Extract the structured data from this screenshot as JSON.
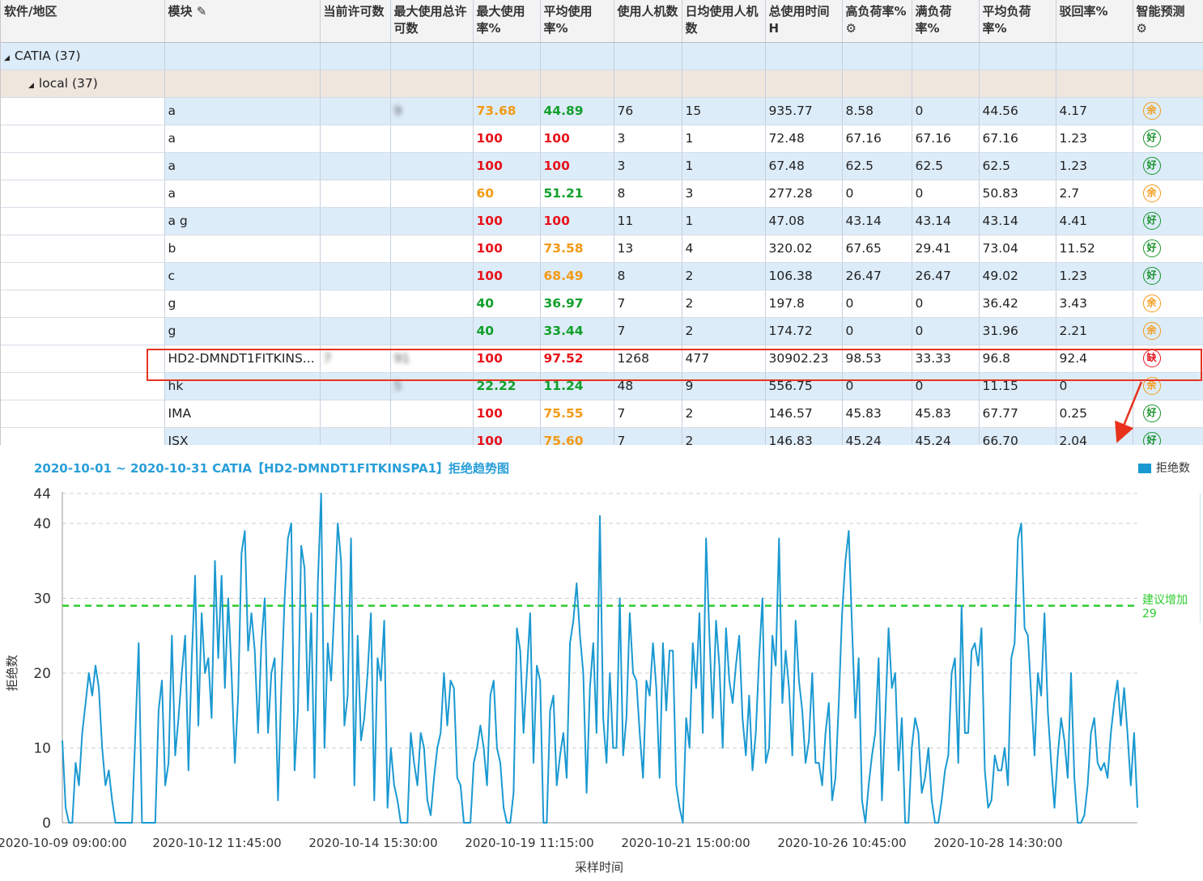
{
  "grid": {
    "columns": [
      "软件/地区",
      "模块",
      "当前许可数",
      "最大使用总许可数",
      "最大使用率%",
      "平均使用率%",
      "使用人机数",
      "日均使用人机数",
      "总使用时间H",
      "高负荷率%",
      "满负荷率%",
      "平均负荷率%",
      "驳回率%",
      "智能预测"
    ],
    "group1": "CATIA (37)",
    "group2": "local (37)",
    "rows": [
      {
        "module": "a",
        "cur": "",
        "maxTot": "9",
        "maxRate": "73.68",
        "maxCls": "orange",
        "avgRate": "44.89",
        "avgCls": "green",
        "users": "76",
        "daily": "15",
        "total": "935.77",
        "high": "8.58",
        "full": "0",
        "avgLoad": "44.56",
        "reject": "4.17",
        "pred": "余",
        "predCls": "o"
      },
      {
        "module": "a",
        "cur": "",
        "maxTot": "",
        "maxRate": "100",
        "maxCls": "red",
        "avgRate": "100",
        "avgCls": "red",
        "users": "3",
        "daily": "1",
        "total": "72.48",
        "high": "67.16",
        "full": "67.16",
        "avgLoad": "67.16",
        "reject": "1.23",
        "pred": "好",
        "predCls": "g"
      },
      {
        "module": "a",
        "cur": "",
        "maxTot": "",
        "maxRate": "100",
        "maxCls": "red",
        "avgRate": "100",
        "avgCls": "red",
        "users": "3",
        "daily": "1",
        "total": "67.48",
        "high": "62.5",
        "full": "62.5",
        "avgLoad": "62.5",
        "reject": "1.23",
        "pred": "好",
        "predCls": "g"
      },
      {
        "module": "a",
        "cur": "",
        "maxTot": "",
        "maxRate": "60",
        "maxCls": "orange",
        "avgRate": "51.21",
        "avgCls": "green",
        "users": "8",
        "daily": "3",
        "total": "277.28",
        "high": "0",
        "full": "0",
        "avgLoad": "50.83",
        "reject": "2.7",
        "pred": "余",
        "predCls": "o"
      },
      {
        "module": "a   g",
        "cur": "",
        "maxTot": "",
        "maxRate": "100",
        "maxCls": "red",
        "avgRate": "100",
        "avgCls": "red",
        "users": "11",
        "daily": "1",
        "total": "47.08",
        "high": "43.14",
        "full": "43.14",
        "avgLoad": "43.14",
        "reject": "4.41",
        "pred": "好",
        "predCls": "g"
      },
      {
        "module": "b",
        "cur": "",
        "maxTot": "",
        "maxRate": "100",
        "maxCls": "red",
        "avgRate": "73.58",
        "avgCls": "orange",
        "users": "13",
        "daily": "4",
        "total": "320.02",
        "high": "67.65",
        "full": "29.41",
        "avgLoad": "73.04",
        "reject": "11.52",
        "pred": "好",
        "predCls": "g"
      },
      {
        "module": "c",
        "cur": "",
        "maxTot": "",
        "maxRate": "100",
        "maxCls": "red",
        "avgRate": "68.49",
        "avgCls": "orange",
        "users": "8",
        "daily": "2",
        "total": "106.38",
        "high": "26.47",
        "full": "26.47",
        "avgLoad": "49.02",
        "reject": "1.23",
        "pred": "好",
        "predCls": "g"
      },
      {
        "module": "g",
        "cur": "",
        "maxTot": "",
        "maxRate": "40",
        "maxCls": "green",
        "avgRate": "36.97",
        "avgCls": "green",
        "users": "7",
        "daily": "2",
        "total": "197.8",
        "high": "0",
        "full": "0",
        "avgLoad": "36.42",
        "reject": "3.43",
        "pred": "余",
        "predCls": "o"
      },
      {
        "module": "g",
        "cur": "",
        "maxTot": "",
        "maxRate": "40",
        "maxCls": "green",
        "avgRate": "33.44",
        "avgCls": "green",
        "users": "7",
        "daily": "2",
        "total": "174.72",
        "high": "0",
        "full": "0",
        "avgLoad": "31.96",
        "reject": "2.21",
        "pred": "余",
        "predCls": "o"
      },
      {
        "module": "HD2-DMNDT1FITKINS...",
        "cur": "7",
        "maxTot": "91",
        "maxRate": "100",
        "maxCls": "red",
        "avgRate": "97.52",
        "avgCls": "red",
        "users": "1268",
        "daily": "477",
        "total": "30902.23",
        "high": "98.53",
        "full": "33.33",
        "avgLoad": "96.8",
        "reject": "92.4",
        "pred": "缺",
        "predCls": "r"
      },
      {
        "module": "hk",
        "cur": "",
        "maxTot": "5",
        "maxRate": "22.22",
        "maxCls": "green",
        "avgRate": "11.24",
        "avgCls": "green",
        "users": "48",
        "daily": "9",
        "total": "556.75",
        "high": "0",
        "full": "0",
        "avgLoad": "11.15",
        "reject": "0",
        "pred": "余",
        "predCls": "o"
      },
      {
        "module": "IMA",
        "cur": "",
        "maxTot": "",
        "maxRate": "100",
        "maxCls": "red",
        "avgRate": "75.55",
        "avgCls": "orange",
        "users": "7",
        "daily": "2",
        "total": "146.57",
        "high": "45.83",
        "full": "45.83",
        "avgLoad": "67.77",
        "reject": "0.25",
        "pred": "好",
        "predCls": "g"
      },
      {
        "module": "ISX",
        "cur": "",
        "maxTot": "",
        "maxRate": "100",
        "maxCls": "red",
        "avgRate": "75.60",
        "avgCls": "orange",
        "users": "7",
        "daily": "2",
        "total": "146.83",
        "high": "45.24",
        "full": "45.24",
        "avgLoad": "66.70",
        "reject": "2.04",
        "pred": "好",
        "predCls": "g"
      }
    ]
  },
  "chart_title": "2020-10-01 ~ 2020-10-31 CATIA【HD2-DMNDT1FITKINSPA1】拒绝趋势图",
  "legend_label": "拒绝数",
  "colors": {
    "line": "#1a99d1",
    "threshold": "#2ecc2e",
    "title": "#2a9fd8"
  },
  "chart_data": {
    "type": "line",
    "title": "2020-10-01 ~ 2020-10-31 CATIA【HD2-DMNDT1FITKINSPA1】拒绝趋势图",
    "xlabel": "采样时间",
    "ylabel": "拒绝数",
    "ylim": [
      0,
      44
    ],
    "yticks": [
      0,
      10,
      20,
      30,
      40,
      44
    ],
    "xtick_labels": [
      "2020-10-09 09:00:00",
      "2020-10-12 11:45:00",
      "2020-10-14 15:30:00",
      "2020-10-19 11:15:00",
      "2020-10-21 15:00:00",
      "2020-10-26 10:45:00",
      "2020-10-28 14:30:00"
    ],
    "threshold": {
      "value": 29,
      "label_line1": "建议增加",
      "label_line2": "29"
    },
    "series": [
      {
        "name": "拒绝数",
        "values": [
          11,
          2,
          0,
          0,
          8,
          5,
          12,
          16,
          20,
          17,
          21,
          18,
          10,
          5,
          7,
          3,
          0,
          0,
          0,
          0,
          0,
          0,
          12,
          24,
          0,
          0,
          0,
          0,
          0,
          15,
          19,
          5,
          8,
          25,
          9,
          14,
          20,
          25,
          7,
          22,
          33,
          13,
          28,
          20,
          22,
          14,
          35,
          22,
          33,
          18,
          30,
          20,
          8,
          17,
          36,
          39,
          23,
          28,
          23,
          12,
          24,
          30,
          12,
          20,
          22,
          3,
          18,
          30,
          38,
          40,
          7,
          15,
          37,
          34,
          15,
          28,
          6,
          32,
          44,
          10,
          24,
          19,
          29,
          40,
          35,
          13,
          17,
          38,
          5,
          25,
          11,
          14,
          20,
          28,
          3,
          22,
          19,
          27,
          2,
          10,
          5,
          3,
          0,
          0,
          0,
          12,
          8,
          5,
          12,
          10,
          3,
          1,
          6,
          10,
          12,
          20,
          13,
          19,
          18,
          6,
          5,
          0,
          0,
          0,
          8,
          10,
          13,
          10,
          5,
          17,
          19,
          10,
          8,
          2,
          0,
          0,
          4,
          26,
          23,
          12,
          20,
          28,
          8,
          21,
          19,
          0,
          0,
          15,
          17,
          5,
          9,
          12,
          6,
          24,
          27,
          32,
          25,
          20,
          4,
          18,
          24,
          12,
          41,
          14,
          8,
          20,
          10,
          10,
          30,
          9,
          14,
          28,
          20,
          19,
          12,
          6,
          19,
          17,
          24,
          18,
          6,
          24,
          15,
          23,
          23,
          5,
          2,
          0,
          14,
          10,
          24,
          18,
          28,
          12,
          38,
          25,
          14,
          27,
          21,
          10,
          26,
          19,
          16,
          21,
          25,
          14,
          9,
          17,
          7,
          12,
          22,
          30,
          8,
          10,
          25,
          21,
          38,
          16,
          23,
          18,
          9,
          27,
          19,
          15,
          8,
          11,
          20,
          8,
          8,
          5,
          12,
          16,
          3,
          6,
          16,
          28,
          35,
          39,
          26,
          14,
          22,
          3,
          0,
          5,
          9,
          12,
          22,
          3,
          14,
          26,
          18,
          20,
          7,
          14,
          0,
          0,
          10,
          14,
          12,
          4,
          6,
          10,
          3,
          0,
          0,
          3,
          7,
          9,
          20,
          22,
          8,
          29,
          12,
          12,
          23,
          24,
          21,
          26,
          7,
          2,
          3,
          9,
          7,
          7,
          10,
          5,
          22,
          24,
          38,
          40,
          26,
          25,
          17,
          9,
          20,
          17,
          28,
          15,
          8,
          2,
          9,
          14,
          11,
          6,
          20,
          6,
          0,
          0,
          1,
          5,
          12,
          14,
          8,
          7,
          8,
          6,
          12,
          16,
          19,
          13,
          18,
          12,
          5,
          12,
          2
        ]
      }
    ]
  }
}
